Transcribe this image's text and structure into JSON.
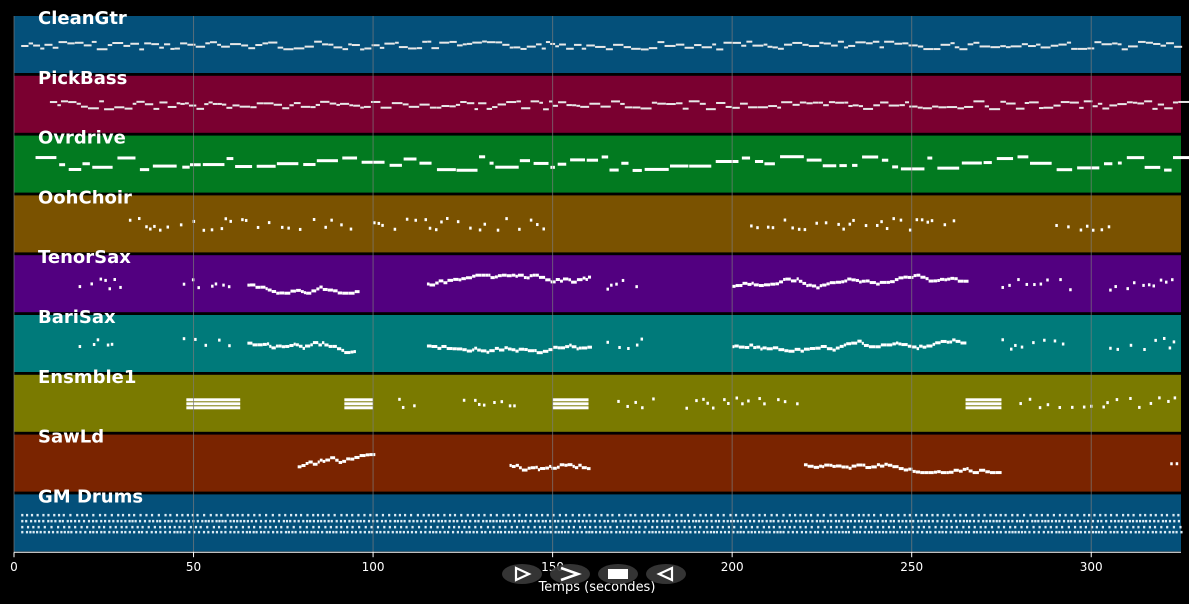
{
  "view": {
    "x_axis_label": "Temps (secondes)",
    "x_min": 0,
    "x_max": 325,
    "x_ticks": [
      0,
      50,
      100,
      150,
      200,
      250,
      300
    ],
    "grid_color": "#7a7a7a",
    "background": "#000000",
    "note_color": "#ffffff"
  },
  "tracks": [
    {
      "name": "CleanGtr",
      "color": "#04507a",
      "segments": [
        [
          2,
          325,
          "dense"
        ]
      ]
    },
    {
      "name": "PickBass",
      "color": "#7a0030",
      "segments": [
        [
          10,
          325,
          "dense"
        ]
      ]
    },
    {
      "name": "Ovrdrive",
      "color": "#027a20",
      "segments": [
        [
          6,
          325,
          "long"
        ]
      ]
    },
    {
      "name": "OohChoir",
      "color": "#7a5200",
      "segments": [
        [
          32,
          60,
          "sparse"
        ],
        [
          60,
          95,
          "sparse"
        ],
        [
          100,
          150,
          "sparse"
        ],
        [
          205,
          265,
          "sparse"
        ],
        [
          290,
          305,
          "sparse"
        ]
      ]
    },
    {
      "name": "TenorSax",
      "color": "#520080",
      "segments": [
        [
          18,
          30,
          "sparse"
        ],
        [
          47,
          60,
          "sparse"
        ],
        [
          65,
          95,
          "melody"
        ],
        [
          115,
          160,
          "melody"
        ],
        [
          165,
          175,
          "sparse"
        ],
        [
          200,
          265,
          "melody"
        ],
        [
          275,
          295,
          "sparse"
        ],
        [
          305,
          325,
          "sparse"
        ]
      ]
    },
    {
      "name": "BariSax",
      "color": "#007a7a",
      "segments": [
        [
          18,
          30,
          "sparse"
        ],
        [
          47,
          60,
          "sparse"
        ],
        [
          65,
          95,
          "melody"
        ],
        [
          115,
          160,
          "melody"
        ],
        [
          165,
          175,
          "sparse"
        ],
        [
          200,
          265,
          "melody"
        ],
        [
          275,
          295,
          "sparse"
        ],
        [
          305,
          325,
          "sparse"
        ]
      ]
    },
    {
      "name": "Ensmble1",
      "color": "#7a7a00",
      "segments": [
        [
          48,
          63,
          "chord"
        ],
        [
          92,
          100,
          "chord"
        ],
        [
          107,
          112,
          "sparse"
        ],
        [
          125,
          140,
          "sparse"
        ],
        [
          150,
          160,
          "chord"
        ],
        [
          168,
          180,
          "sparse"
        ],
        [
          187,
          218,
          "sparse"
        ],
        [
          265,
          275,
          "chord"
        ],
        [
          280,
          325,
          "sparse"
        ]
      ]
    },
    {
      "name": "SawLd",
      "color": "#7a2400",
      "segments": [
        [
          79,
          100,
          "melody"
        ],
        [
          138,
          160,
          "melody"
        ],
        [
          220,
          275,
          "melody"
        ],
        [
          322,
          325,
          "sparse"
        ]
      ]
    },
    {
      "name": "GM Drums",
      "color": "#04507a",
      "segments": [
        [
          2,
          325,
          "drums"
        ]
      ]
    }
  ],
  "controls": [
    {
      "name": "play-from-start-button",
      "icon": "play-outline-icon"
    },
    {
      "name": "play-button",
      "icon": "play-icon"
    },
    {
      "name": "stop-button",
      "icon": "stop-icon"
    },
    {
      "name": "rewind-button",
      "icon": "rewind-icon"
    }
  ]
}
